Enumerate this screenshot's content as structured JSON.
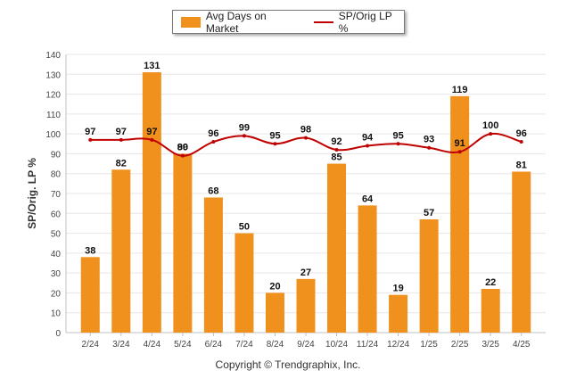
{
  "colors": {
    "bar": "#f0901d",
    "line": "#c00000",
    "grid": "#e6e6e6",
    "axis": "#c0c0c0"
  },
  "copyright": "Copyright © Trendgraphix, Inc.",
  "chart_data": {
    "type": "bar",
    "categories": [
      "2/24",
      "3/24",
      "4/24",
      "5/24",
      "6/24",
      "7/24",
      "8/24",
      "9/24",
      "10/24",
      "11/24",
      "12/24",
      "1/25",
      "2/25",
      "3/25",
      "4/25"
    ],
    "ylabel": "SP/Orig. LP %",
    "ylim": [
      0,
      140
    ],
    "yticks": [
      0,
      10,
      20,
      30,
      40,
      50,
      60,
      70,
      80,
      90,
      100,
      110,
      120,
      130,
      140
    ],
    "grid": true,
    "legend_position": "top-center",
    "series": [
      {
        "name": "Avg Days on Market",
        "type": "bar",
        "values": [
          38,
          82,
          131,
          90,
          68,
          50,
          20,
          27,
          85,
          64,
          19,
          57,
          119,
          22,
          81
        ]
      },
      {
        "name": "SP/Orig LP %",
        "type": "line",
        "values": [
          97,
          97,
          97,
          89,
          96,
          99,
          95,
          98,
          92,
          94,
          95,
          93,
          91,
          100,
          96
        ]
      }
    ]
  }
}
